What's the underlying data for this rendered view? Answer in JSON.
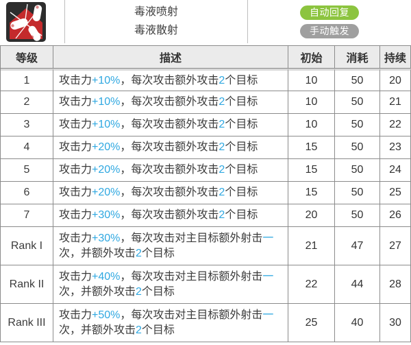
{
  "skill_header": {
    "icon_name": "scatter-shells-skill-icon",
    "icon_colors": {
      "background": "#2d2d2d",
      "shape": "#c42a2c",
      "shells": "#ffffff"
    },
    "names": [
      "毒液喷射",
      "毒液散射"
    ],
    "badges": [
      {
        "label": "自动回复",
        "color": "#8cc43f"
      },
      {
        "label": "手动触发",
        "color": "#9f9f9f"
      }
    ]
  },
  "table": {
    "columns": [
      "等级",
      "描述",
      "初始",
      "消耗",
      "持续"
    ],
    "highlight_color": "#2fa8e1",
    "rows": [
      {
        "level": "1",
        "desc": [
          [
            "攻击力",
            0
          ],
          [
            "+10%",
            1
          ],
          [
            "，每次攻击额外攻击",
            0
          ],
          [
            "2",
            1
          ],
          [
            "个目标",
            0
          ]
        ],
        "initial": "10",
        "cost": "50",
        "duration": "20"
      },
      {
        "level": "2",
        "desc": [
          [
            "攻击力",
            0
          ],
          [
            "+10%",
            1
          ],
          [
            "，每次攻击额外攻击",
            0
          ],
          [
            "2",
            1
          ],
          [
            "个目标",
            0
          ]
        ],
        "initial": "10",
        "cost": "50",
        "duration": "21"
      },
      {
        "level": "3",
        "desc": [
          [
            "攻击力",
            0
          ],
          [
            "+10%",
            1
          ],
          [
            "，每次攻击额外攻击",
            0
          ],
          [
            "2",
            1
          ],
          [
            "个目标",
            0
          ]
        ],
        "initial": "10",
        "cost": "50",
        "duration": "22"
      },
      {
        "level": "4",
        "desc": [
          [
            "攻击力",
            0
          ],
          [
            "+20%",
            1
          ],
          [
            "，每次攻击额外攻击",
            0
          ],
          [
            "2",
            1
          ],
          [
            "个目标",
            0
          ]
        ],
        "initial": "15",
        "cost": "50",
        "duration": "23"
      },
      {
        "level": "5",
        "desc": [
          [
            "攻击力",
            0
          ],
          [
            "+20%",
            1
          ],
          [
            "，每次攻击额外攻击",
            0
          ],
          [
            "2",
            1
          ],
          [
            "个目标",
            0
          ]
        ],
        "initial": "15",
        "cost": "50",
        "duration": "24"
      },
      {
        "level": "6",
        "desc": [
          [
            "攻击力",
            0
          ],
          [
            "+20%",
            1
          ],
          [
            "，每次攻击额外攻击",
            0
          ],
          [
            "2",
            1
          ],
          [
            "个目标",
            0
          ]
        ],
        "initial": "15",
        "cost": "50",
        "duration": "25"
      },
      {
        "level": "7",
        "desc": [
          [
            "攻击力",
            0
          ],
          [
            "+30%",
            1
          ],
          [
            "，每次攻击额外攻击",
            0
          ],
          [
            "2",
            1
          ],
          [
            "个目标",
            0
          ]
        ],
        "initial": "20",
        "cost": "50",
        "duration": "26"
      },
      {
        "level": "Rank I",
        "desc": [
          [
            "攻击力",
            0
          ],
          [
            "+30%",
            1
          ],
          [
            "，每次攻击对主目标额外射击",
            0
          ],
          [
            "一",
            1
          ],
          [
            "\n次，并额外攻击",
            0
          ],
          [
            "2",
            1
          ],
          [
            "个目标",
            0
          ]
        ],
        "initial": "21",
        "cost": "47",
        "duration": "27"
      },
      {
        "level": "Rank II",
        "desc": [
          [
            "攻击力",
            0
          ],
          [
            "+40%",
            1
          ],
          [
            "，每次攻击对主目标额外射击",
            0
          ],
          [
            "一",
            1
          ],
          [
            "\n次，并额外攻击",
            0
          ],
          [
            "2",
            1
          ],
          [
            "个目标",
            0
          ]
        ],
        "initial": "22",
        "cost": "44",
        "duration": "28"
      },
      {
        "level": "Rank III",
        "desc": [
          [
            "攻击力",
            0
          ],
          [
            "+50%",
            1
          ],
          [
            "，每次攻击对主目标额外射击",
            0
          ],
          [
            "一",
            1
          ],
          [
            "\n次，并额外攻击",
            0
          ],
          [
            "2",
            1
          ],
          [
            "个目标",
            0
          ]
        ],
        "initial": "25",
        "cost": "40",
        "duration": "30"
      }
    ]
  }
}
